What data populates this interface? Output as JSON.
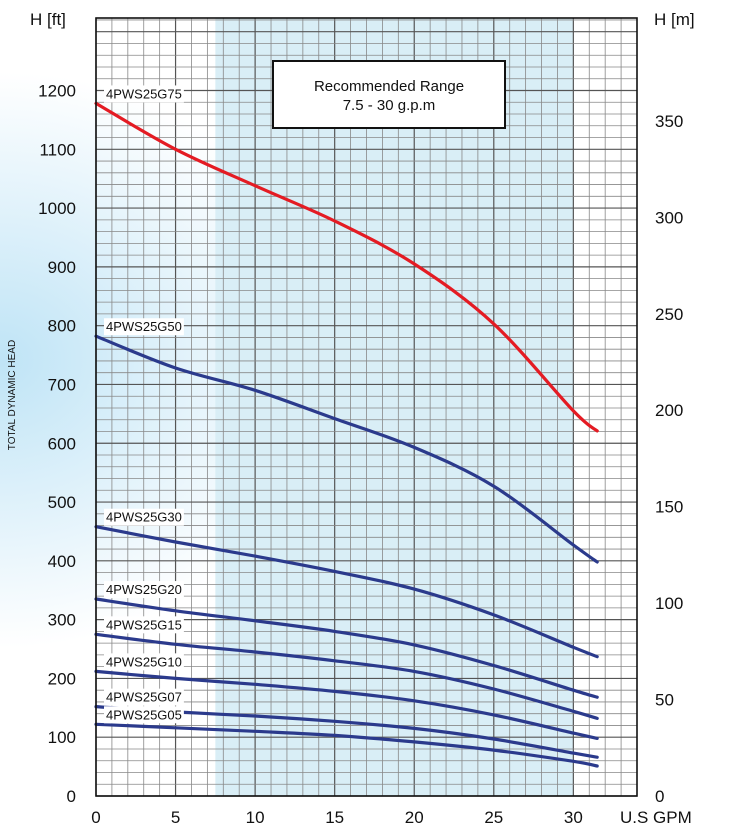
{
  "chart_data": {
    "type": "line",
    "title": "",
    "xlabel": "U.S GPM",
    "ylabel_left_unit": "H [ft]",
    "ylabel_right_unit": "H [m]",
    "ylabel_side": "TOTAL DYNAMIC HEAD",
    "xlim": [
      0,
      34
    ],
    "ylim_left": [
      0,
      1200
    ],
    "ylim_right": [
      0,
      365.76
    ],
    "x_ticks": [
      0,
      5,
      10,
      15,
      20,
      25,
      30
    ],
    "y_ticks_left": [
      0,
      100,
      200,
      300,
      400,
      500,
      600,
      700,
      800,
      900,
      1000,
      1100,
      1200
    ],
    "y_ticks_right": [
      0,
      50,
      100,
      150,
      200,
      250,
      300,
      350
    ],
    "grid": true,
    "recommended_range": {
      "x_range": [
        7.5,
        30
      ],
      "label_line1": "Recommended Range",
      "label_line2": "7.5 - 30 g.p.m",
      "color": "#d9eef6"
    },
    "series": [
      {
        "name": "4PWS25G75",
        "color": "#e41b23",
        "x": [
          0,
          5,
          10,
          15,
          20,
          25,
          30,
          31.5
        ],
        "y": [
          1178,
          1100,
          1038,
          978,
          905,
          803,
          655,
          621
        ]
      },
      {
        "name": "4PWS25G50",
        "color": "#2b3a8c",
        "x": [
          0,
          5,
          10,
          15,
          20,
          25,
          30,
          31.5
        ],
        "y": [
          782,
          728,
          690,
          642,
          593,
          527,
          427,
          398
        ]
      },
      {
        "name": "4PWS25G30",
        "color": "#2b3a8c",
        "x": [
          0,
          5,
          10,
          15,
          20,
          25,
          30,
          31.5
        ],
        "y": [
          458,
          432,
          408,
          382,
          352,
          308,
          253,
          237
        ]
      },
      {
        "name": "4PWS25G20",
        "color": "#2b3a8c",
        "x": [
          0,
          5,
          10,
          15,
          20,
          25,
          30,
          31.5
        ],
        "y": [
          335,
          315,
          298,
          280,
          257,
          222,
          180,
          168
        ]
      },
      {
        "name": "4PWS25G15",
        "color": "#2b3a8c",
        "x": [
          0,
          5,
          10,
          15,
          20,
          25,
          30,
          31.5
        ],
        "y": [
          275,
          258,
          245,
          230,
          212,
          182,
          144,
          132
        ]
      },
      {
        "name": "4PWS25G10",
        "color": "#2b3a8c",
        "x": [
          0,
          5,
          10,
          15,
          20,
          25,
          30,
          31.5
        ],
        "y": [
          212,
          200,
          190,
          178,
          162,
          138,
          107,
          98
        ]
      },
      {
        "name": "4PWS25G07",
        "color": "#2b3a8c",
        "x": [
          0,
          5,
          10,
          15,
          20,
          25,
          30,
          31.5
        ],
        "y": [
          152,
          143,
          136,
          127,
          115,
          97,
          73,
          66
        ]
      },
      {
        "name": "4PWS25G05",
        "color": "#2b3a8c",
        "x": [
          0,
          5,
          10,
          15,
          20,
          25,
          30,
          31.5
        ],
        "y": [
          122,
          116,
          110,
          103,
          92,
          78,
          59,
          51
        ]
      }
    ]
  }
}
